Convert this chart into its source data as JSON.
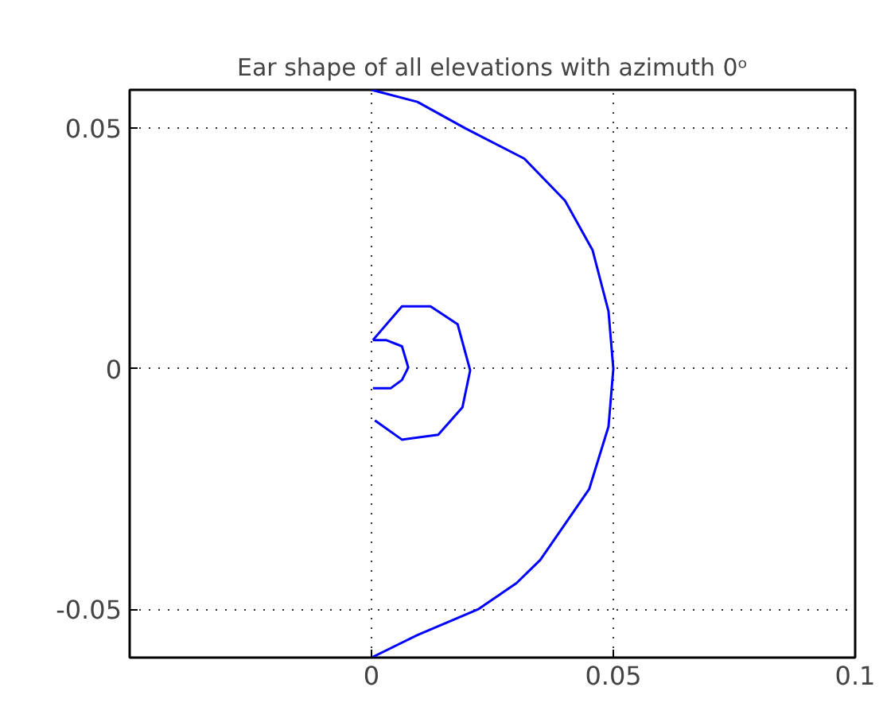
{
  "chart_data": {
    "type": "line",
    "title": "Ear shape of all elevations with azimuth 0ᵒ",
    "xlim": [
      -0.05,
      0.1
    ],
    "ylim": [
      -0.06,
      0.058
    ],
    "xticks": [
      0,
      0.05,
      0.1
    ],
    "yticks": [
      -0.05,
      0,
      0.05
    ],
    "grid": true,
    "line_style": "solid",
    "series": [
      {
        "color": "#0000ff",
        "x": [
          0,
          0.0095,
          0.0194,
          0.0316,
          0.04,
          0.0457,
          0.049,
          0.05,
          0.049,
          0.045,
          0.0349,
          0.03,
          0.022,
          0.0095,
          0
        ],
        "values": [
          0.058,
          0.0555,
          0.05,
          0.0437,
          0.035,
          0.0247,
          0.012,
          0,
          -0.012,
          -0.025,
          -0.0397,
          -0.0445,
          -0.05,
          -0.0553,
          -0.06
        ]
      },
      {
        "color": "#0000ff",
        "x": [
          0.0003,
          0.0063,
          0.0122,
          0.0178,
          0.0204,
          0.0188,
          0.0138,
          0.0063,
          0.0007
        ],
        "values": [
          0.006,
          0.013,
          0.013,
          0.0093,
          -0.0003,
          -0.008,
          -0.0137,
          -0.0147,
          -0.0107
        ]
      },
      {
        "color": "#0000ff",
        "x": [
          0.0003,
          0.003,
          0.0063,
          0.0076,
          0.0063,
          0.004,
          0.0003
        ],
        "values": [
          0.006,
          0.006,
          0.0047,
          0.0003,
          -0.0023,
          -0.004,
          -0.004
        ]
      }
    ]
  }
}
